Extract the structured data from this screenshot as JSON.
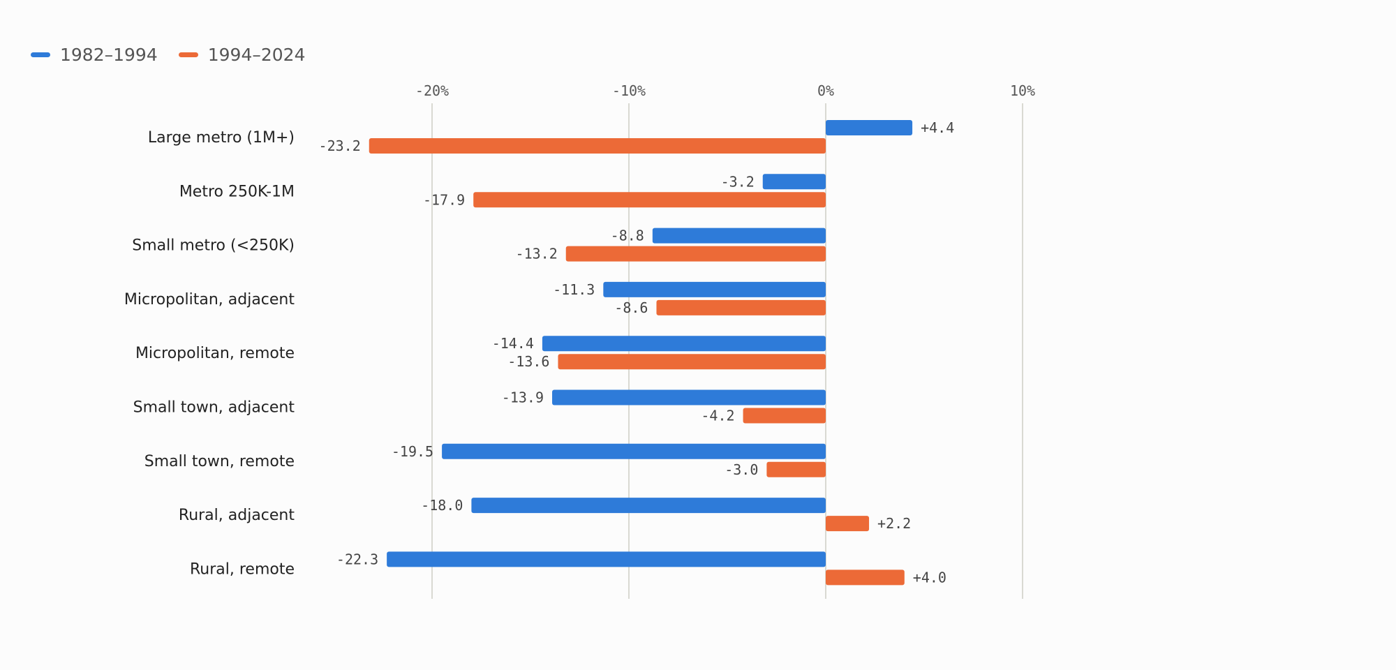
{
  "chart_data": {
    "type": "bar",
    "orientation": "horizontal",
    "categories": [
      "Large metro (1M+)",
      "Metro 250K-1M",
      "Small metro (<250K)",
      "Micropolitan, adjacent",
      "Micropolitan, remote",
      "Small town, adjacent",
      "Small town, remote",
      "Rural, adjacent",
      "Rural, remote"
    ],
    "series": [
      {
        "name": "1982–1994",
        "color": "#2e7bd9",
        "values": [
          4.4,
          -3.2,
          -8.8,
          -11.3,
          -14.4,
          -13.9,
          -19.5,
          -18.0,
          -22.3
        ],
        "labels": [
          "+4.4",
          "-3.2",
          "-8.8",
          "-11.3",
          "-14.4",
          "-13.9",
          "-19.5",
          "-18.0",
          "-22.3"
        ]
      },
      {
        "name": "1994–2024",
        "color": "#ec6a37",
        "values": [
          -23.2,
          -17.9,
          -13.2,
          -8.6,
          -13.6,
          -4.2,
          -3.0,
          2.2,
          4.0
        ],
        "labels": [
          "-23.2",
          "-17.9",
          "-13.2",
          "-8.6",
          "-13.6",
          "-4.2",
          "-3.0",
          "+2.2",
          "+4.0"
        ]
      }
    ],
    "xticks": [
      -20,
      -10,
      0,
      10
    ],
    "xtick_labels": [
      "-20%",
      "-10%",
      "0%",
      "10%"
    ],
    "xlim": [
      -20,
      10
    ],
    "grid": true,
    "legend_position": "top-left",
    "title": "",
    "xlabel": "",
    "ylabel": ""
  }
}
